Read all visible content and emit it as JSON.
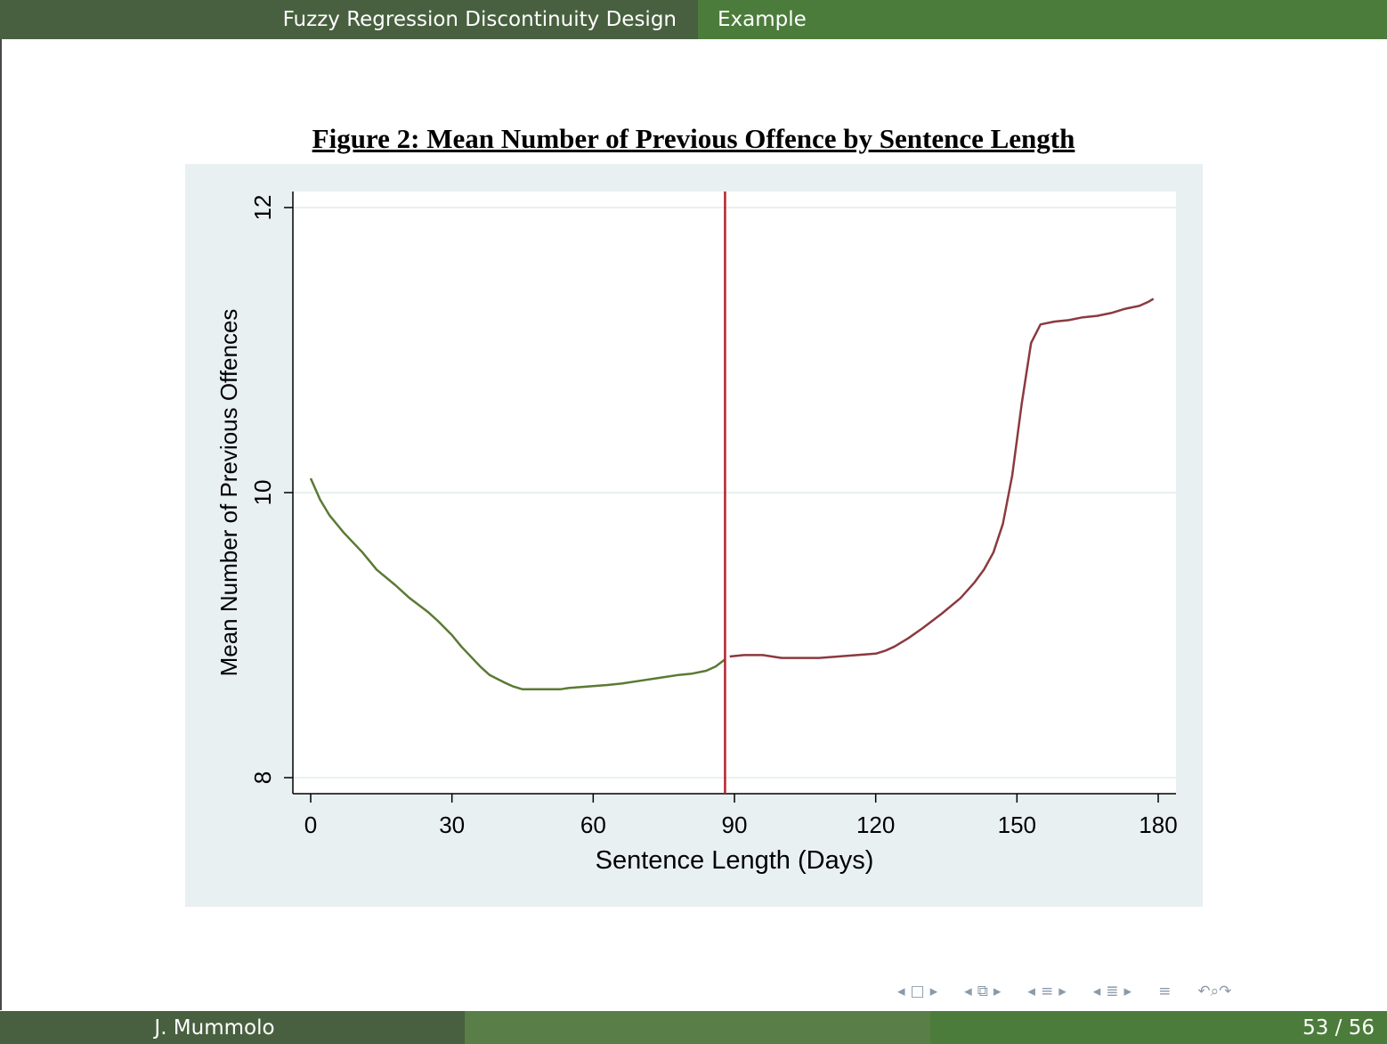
{
  "header": {
    "section": "Fuzzy Regression Discontinuity Design",
    "subsection": "Example"
  },
  "footer": {
    "author": "J. Mummolo",
    "page": "53 / 56"
  },
  "colors": {
    "header_dark": "#48603f",
    "header_green": "#4c7c3b",
    "panel_bg": "#e9f0f2",
    "series_left": "#5a7a32",
    "series_right": "#8b3a3f",
    "cutoff_line": "#b5222f"
  },
  "nav_icons": [
    "arrow-left-icon",
    "frame-icon",
    "arrow-right-icon",
    "subsection-icon",
    "section-icon",
    "align-icon",
    "search-icon"
  ],
  "chart_data": {
    "type": "line",
    "title": "Figure 2: Mean Number of Previous Offence by Sentence Length",
    "xlabel": "Sentence Length (Days)",
    "ylabel": "Mean Number of Previous Offences",
    "xlim": [
      0,
      180
    ],
    "ylim": [
      8,
      12
    ],
    "xticks": [
      0,
      30,
      60,
      90,
      120,
      150,
      180
    ],
    "yticks": [
      8,
      10,
      12
    ],
    "grid": true,
    "cutoff": 88,
    "series": [
      {
        "color": "#5a7a32",
        "x": [
          0,
          2,
          4,
          7,
          11,
          14,
          18,
          21,
          25,
          27,
          30,
          32,
          36,
          38,
          41,
          43,
          45,
          47,
          49,
          51,
          53,
          55,
          59,
          63,
          66,
          70,
          74,
          78,
          81,
          84,
          86,
          88
        ],
        "y": [
          10.1,
          9.95,
          9.84,
          9.72,
          9.58,
          9.46,
          9.35,
          9.26,
          9.16,
          9.1,
          9.0,
          8.92,
          8.78,
          8.72,
          8.67,
          8.64,
          8.62,
          8.62,
          8.62,
          8.62,
          8.62,
          8.63,
          8.64,
          8.65,
          8.66,
          8.68,
          8.7,
          8.72,
          8.73,
          8.75,
          8.78,
          8.83
        ]
      },
      {
        "color": "#8b3a3f",
        "x": [
          89,
          92,
          96,
          100,
          104,
          108,
          112,
          116,
          120,
          122,
          124,
          127,
          130,
          134,
          138,
          141,
          143,
          145,
          147,
          149,
          151,
          153,
          155,
          158,
          161,
          164,
          167,
          170,
          173,
          176,
          178,
          179
        ],
        "y": [
          8.85,
          8.86,
          8.86,
          8.84,
          8.84,
          8.84,
          8.85,
          8.86,
          8.87,
          8.89,
          8.92,
          8.98,
          9.05,
          9.15,
          9.26,
          9.37,
          9.46,
          9.58,
          9.78,
          10.12,
          10.62,
          11.05,
          11.18,
          11.2,
          11.21,
          11.23,
          11.24,
          11.26,
          11.29,
          11.31,
          11.34,
          11.36
        ]
      }
    ]
  }
}
